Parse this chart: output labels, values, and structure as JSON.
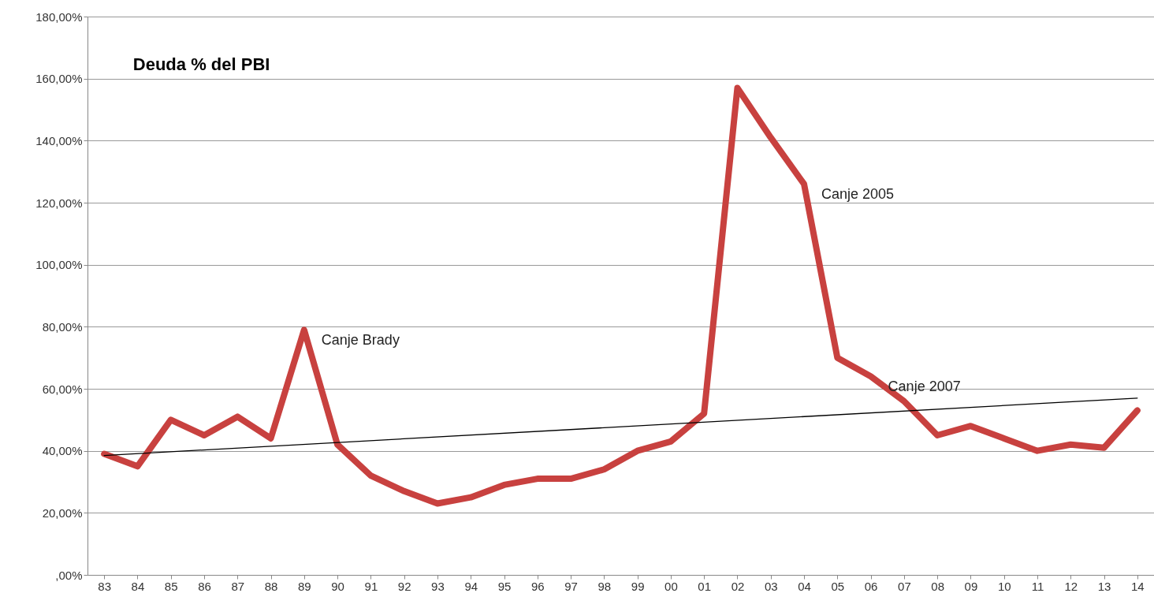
{
  "chart_data": {
    "type": "line",
    "title": "Deuda % del PBI",
    "categories": [
      "83",
      "84",
      "85",
      "86",
      "87",
      "88",
      "89",
      "90",
      "91",
      "92",
      "93",
      "94",
      "95",
      "96",
      "97",
      "98",
      "99",
      "00",
      "01",
      "02",
      "03",
      "04",
      "05",
      "06",
      "07",
      "08",
      "09",
      "10",
      "11",
      "12",
      "13",
      "14"
    ],
    "series": [
      {
        "color": "#c8413f",
        "values": [
          39,
          35,
          50,
          45,
          51,
          44,
          79,
          42,
          32,
          27,
          23,
          25,
          29,
          31,
          31,
          34,
          40,
          43,
          52,
          157,
          141,
          126,
          70,
          64,
          56,
          45,
          48,
          44,
          40,
          42,
          41,
          53
        ]
      },
      {
        "type": "line",
        "color": "#000000",
        "x": [
          "83",
          "14"
        ],
        "values": [
          38.5,
          57
        ]
      }
    ],
    "ylim": [
      0,
      180
    ],
    "yticks": [
      {
        "value": 0,
        "label": ",00%"
      },
      {
        "value": 20,
        "label": "20,00%"
      },
      {
        "value": 40,
        "label": "40,00%"
      },
      {
        "value": 60,
        "label": "60,00%"
      },
      {
        "value": 80,
        "label": "80,00%"
      },
      {
        "value": 100,
        "label": "100,00%"
      },
      {
        "value": 120,
        "label": "120,00%"
      },
      {
        "value": 140,
        "label": "140,00%"
      },
      {
        "value": 160,
        "label": "160,00%"
      },
      {
        "value": 180,
        "label": "180,00%"
      }
    ],
    "grid": "y",
    "marker": "none",
    "line_style": "solid",
    "annotations": [
      {
        "text": "Canje Brady",
        "x": "89",
        "y": 79
      },
      {
        "text": "Canje 2005",
        "x": "04",
        "y": 126
      },
      {
        "text": "Canje 2007",
        "x": "06",
        "y": 64
      }
    ]
  }
}
